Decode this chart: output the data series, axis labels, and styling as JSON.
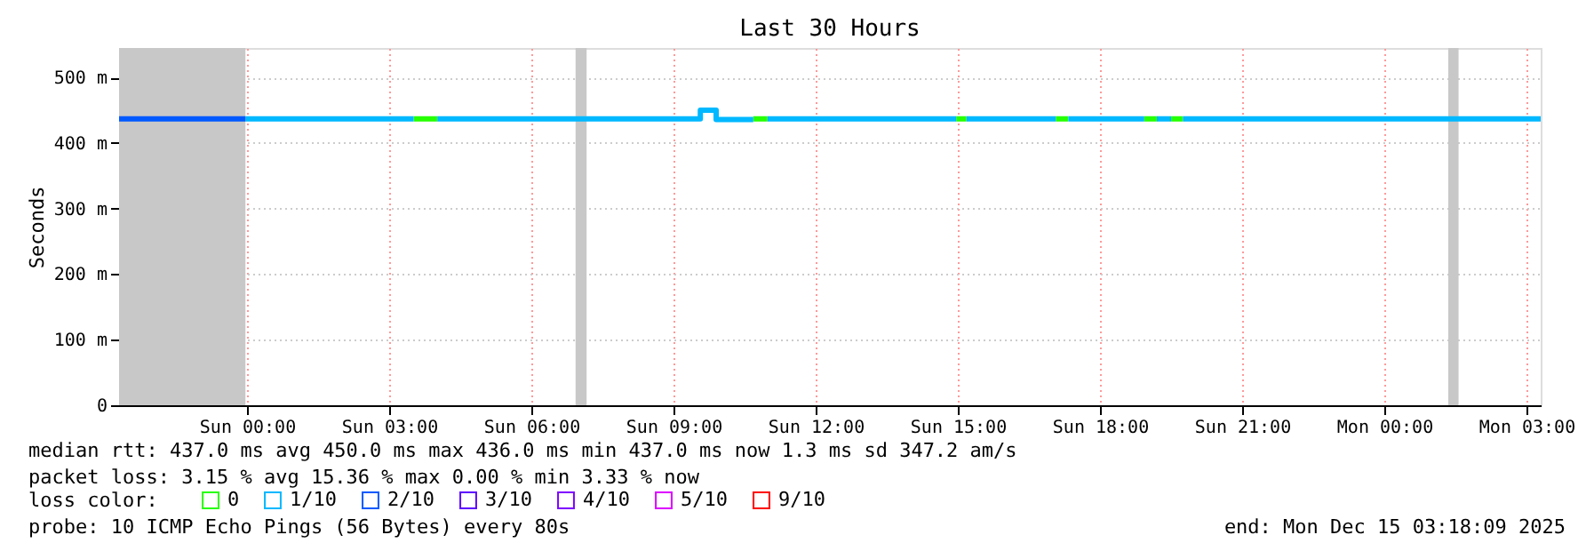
{
  "chart_data": {
    "type": "line",
    "title": "Last 30 Hours",
    "ylabel": "Seconds",
    "legend_title": "loss color:",
    "legend": "bottom left",
    "grid": true,
    "xlim": [
      "2025-12-13T21:18",
      "2025-12-15T03:18"
    ],
    "xticks": [
      {
        "value": "2025-12-14T00:00",
        "label": "Sun 00:00"
      },
      {
        "value": "2025-12-14T03:00",
        "label": "Sun 03:00"
      },
      {
        "value": "2025-12-14T06:00",
        "label": "Sun 06:00"
      },
      {
        "value": "2025-12-14T09:00",
        "label": "Sun 09:00"
      },
      {
        "value": "2025-12-14T12:00",
        "label": "Sun 12:00"
      },
      {
        "value": "2025-12-14T15:00",
        "label": "Sun 15:00"
      },
      {
        "value": "2025-12-14T18:00",
        "label": "Sun 18:00"
      },
      {
        "value": "2025-12-14T21:00",
        "label": "Sun 21:00"
      },
      {
        "value": "2025-12-15T00:00",
        "label": "Mon 00:00"
      },
      {
        "value": "2025-12-15T03:00",
        "label": "Mon 03:00"
      }
    ],
    "ylim": [
      0,
      545
    ],
    "yticks": [
      0,
      {
        "value": 100,
        "label": "100 m"
      },
      {
        "value": 200,
        "label": "200 m"
      },
      {
        "value": 300,
        "label": "300 m"
      },
      {
        "value": 400,
        "label": "400 m"
      },
      {
        "value": 500,
        "label": "500 m"
      }
    ],
    "bands": [
      {
        "axis": "x",
        "from": "2025-12-13T21:18",
        "to": "2025-12-13T23:58",
        "color": "#c8c8c8"
      },
      {
        "axis": "x",
        "from": "2025-12-14T06:56",
        "to": "2025-12-14T07:10",
        "color": "#c8c8c8"
      },
      {
        "axis": "x",
        "from": "2025-12-15T01:21",
        "to": "2025-12-15T01:34",
        "color": "#c8c8c8"
      }
    ],
    "series": [
      {
        "name": "0",
        "color": "#26ff00",
        "x": [
          "2025-12-14T03:31",
          "2025-12-14T04:01",
          "2025-12-14T04:02",
          "2025-12-14T10:41",
          "2025-12-14T10:59",
          "2025-12-14T11:00",
          "2025-12-14T14:58",
          "2025-12-14T15:11",
          "2025-12-14T15:12",
          "2025-12-14T17:04",
          "2025-12-14T17:20",
          "2025-12-14T17:21",
          "2025-12-14T18:56",
          "2025-12-14T19:12",
          "2025-12-14T19:13",
          "2025-12-14T19:30",
          "2025-12-14T19:45"
        ],
        "values": [
          437,
          437,
          null,
          437,
          437,
          null,
          437,
          437,
          null,
          437,
          437,
          null,
          437,
          437,
          null,
          437,
          437
        ]
      },
      {
        "name": "1/10",
        "color": "#00b8ff",
        "x": [
          "2025-12-13T23:58",
          "2025-12-14T03:31",
          "2025-12-14T03:32",
          "2025-12-14T04:01",
          "2025-12-14T09:34",
          "2025-12-14T09:34",
          "2025-12-14T09:54",
          "2025-12-14T09:54",
          "2025-12-14T10:41",
          "2025-12-14T10:42",
          "2025-12-14T10:59",
          "2025-12-14T14:58",
          "2025-12-14T14:59",
          "2025-12-14T15:11",
          "2025-12-14T17:04",
          "2025-12-14T17:05",
          "2025-12-14T17:20",
          "2025-12-14T18:56",
          "2025-12-14T18:57",
          "2025-12-14T19:12",
          "2025-12-14T19:30",
          "2025-12-14T19:31",
          "2025-12-14T19:45",
          "2025-12-15T03:18"
        ],
        "values": [
          437,
          437,
          null,
          437,
          437,
          450,
          450,
          436,
          436,
          null,
          437,
          437,
          null,
          437,
          437,
          null,
          437,
          437,
          null,
          437,
          437,
          null,
          437,
          437
        ]
      },
      {
        "name": "2/10",
        "color": "#0059ff",
        "x": [
          "2025-12-13T21:18",
          "2025-12-13T23:58"
        ],
        "values": [
          437,
          437
        ]
      },
      {
        "name": "3/10",
        "color": "#5e00ff"
      },
      {
        "name": "4/10",
        "color": "#7e00ff"
      },
      {
        "name": "5/10",
        "color": "#dd00ff"
      },
      {
        "name": "9/10",
        "color": "#ff0000"
      }
    ],
    "annotations": [
      "median rtt:  437.0 ms avg  450.0 ms max  436.0 ms min  437.0 ms now  1.3 ms sd  347.2   am/s",
      "packet loss: 3.15 % avg  15.36 % max  0.00 % min  3.33 % now",
      "probe:       10 ICMP Echo Pings (56 Bytes) every 80s",
      "end: Mon Dec 15 03:18:09 2025"
    ]
  }
}
